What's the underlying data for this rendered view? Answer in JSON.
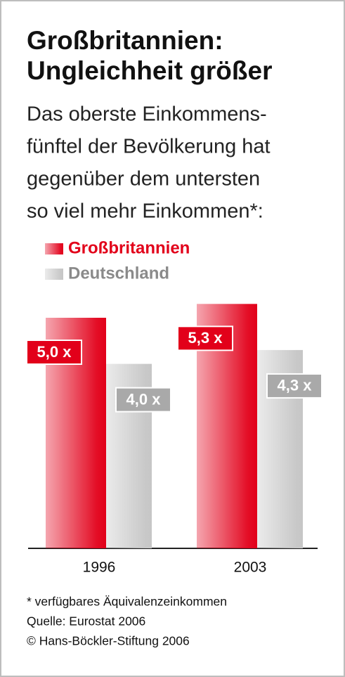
{
  "chart_data": {
    "type": "bar",
    "title": [
      "Großbritannien:",
      "Ungleichheit größer"
    ],
    "subtitle": [
      "Das oberste Einkommens-",
      "fünftel der Bevölkerung hat",
      "gegenüber dem untersten",
      "so viel mehr Einkommen*:"
    ],
    "categories": [
      "1996",
      "2003"
    ],
    "series": [
      {
        "name": "Großbritannien",
        "color": "#e2001a",
        "values": [
          5.0,
          5.3
        ],
        "value_labels": [
          "5,0 x",
          "5,3 x"
        ]
      },
      {
        "name": "Deutschland",
        "color": "#c6c6c6",
        "values": [
          4.0,
          4.3
        ],
        "value_labels": [
          "4,0 x",
          "4,3 x"
        ]
      }
    ],
    "notes": [
      "* verfügbares Äquivalenzeinkommen",
      "Quelle: Eurostat 2006",
      "© Hans-Böckler-Stiftung 2006"
    ]
  }
}
